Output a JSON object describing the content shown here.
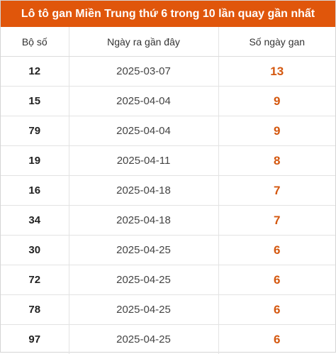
{
  "title": "Lô tô gan Miền Trung thứ 6 trong 10 lần quay gần nhất",
  "columns": [
    "Bộ số",
    "Ngày ra gần đây",
    "Số ngày gan"
  ],
  "rows": [
    {
      "number": "12",
      "date": "2025-03-07",
      "days": "13"
    },
    {
      "number": "15",
      "date": "2025-04-04",
      "days": "9"
    },
    {
      "number": "79",
      "date": "2025-04-04",
      "days": "9"
    },
    {
      "number": "19",
      "date": "2025-04-11",
      "days": "8"
    },
    {
      "number": "16",
      "date": "2025-04-18",
      "days": "7"
    },
    {
      "number": "34",
      "date": "2025-04-18",
      "days": "7"
    },
    {
      "number": "30",
      "date": "2025-04-25",
      "days": "6"
    },
    {
      "number": "72",
      "date": "2025-04-25",
      "days": "6"
    },
    {
      "number": "78",
      "date": "2025-04-25",
      "days": "6"
    },
    {
      "number": "97",
      "date": "2025-04-25",
      "days": "6"
    }
  ],
  "colors": {
    "header_bg": "#e0560b",
    "accent": "#d4570e"
  }
}
